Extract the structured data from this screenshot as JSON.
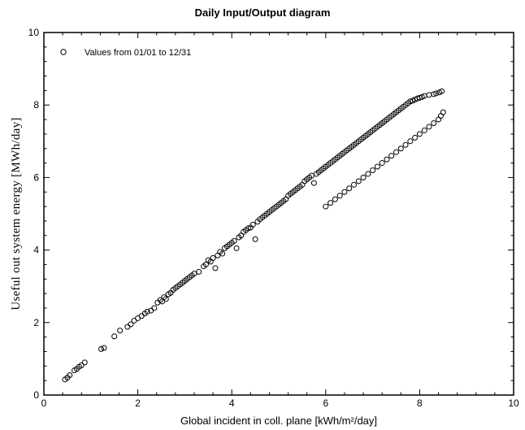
{
  "chart_data": {
    "type": "scatter",
    "title": "Daily Input/Output diagram",
    "xlabel": "Global incident in coll. plane [kWh/m²/day]",
    "ylabel": "Useful out system energy [MWh/day]",
    "xlim": [
      0,
      10
    ],
    "ylim": [
      0,
      10
    ],
    "xticks": [
      0,
      2,
      4,
      6,
      8,
      10
    ],
    "yticks": [
      0,
      2,
      4,
      6,
      8,
      10
    ],
    "grid": false,
    "legend_position": "top-left",
    "marker_color": "#000000",
    "series": [
      {
        "name": "Values from 01/01 to 12/31",
        "marker": "open-circle",
        "points": [
          [
            0.45,
            0.43
          ],
          [
            0.5,
            0.48
          ],
          [
            0.55,
            0.55
          ],
          [
            0.65,
            0.68
          ],
          [
            0.7,
            0.72
          ],
          [
            0.75,
            0.78
          ],
          [
            0.8,
            0.82
          ],
          [
            0.87,
            0.9
          ],
          [
            1.22,
            1.27
          ],
          [
            1.28,
            1.3
          ],
          [
            1.5,
            1.62
          ],
          [
            1.62,
            1.78
          ],
          [
            1.78,
            1.88
          ],
          [
            1.85,
            1.95
          ],
          [
            1.92,
            2.05
          ],
          [
            2.0,
            2.12
          ],
          [
            2.08,
            2.18
          ],
          [
            2.15,
            2.25
          ],
          [
            2.2,
            2.3
          ],
          [
            2.28,
            2.33
          ],
          [
            2.35,
            2.4
          ],
          [
            2.42,
            2.55
          ],
          [
            2.48,
            2.62
          ],
          [
            2.52,
            2.58
          ],
          [
            2.56,
            2.7
          ],
          [
            2.6,
            2.65
          ],
          [
            2.65,
            2.78
          ],
          [
            2.7,
            2.82
          ],
          [
            2.75,
            2.9
          ],
          [
            2.8,
            2.95
          ],
          [
            2.85,
            3.0
          ],
          [
            2.9,
            3.05
          ],
          [
            2.95,
            3.1
          ],
          [
            3.0,
            3.15
          ],
          [
            3.05,
            3.2
          ],
          [
            3.1,
            3.25
          ],
          [
            3.15,
            3.3
          ],
          [
            3.2,
            3.35
          ],
          [
            3.3,
            3.4
          ],
          [
            3.4,
            3.55
          ],
          [
            3.45,
            3.6
          ],
          [
            3.5,
            3.72
          ],
          [
            3.55,
            3.68
          ],
          [
            3.6,
            3.78
          ],
          [
            3.65,
            3.5
          ],
          [
            3.7,
            3.85
          ],
          [
            3.75,
            3.95
          ],
          [
            3.8,
            3.9
          ],
          [
            3.85,
            4.05
          ],
          [
            3.9,
            4.1
          ],
          [
            3.95,
            4.15
          ],
          [
            4.0,
            4.2
          ],
          [
            4.05,
            4.25
          ],
          [
            4.1,
            4.05
          ],
          [
            4.15,
            4.35
          ],
          [
            4.2,
            4.4
          ],
          [
            4.25,
            4.5
          ],
          [
            4.3,
            4.55
          ],
          [
            4.35,
            4.6
          ],
          [
            4.4,
            4.62
          ],
          [
            4.45,
            4.7
          ],
          [
            4.5,
            4.3
          ],
          [
            4.55,
            4.78
          ],
          [
            4.6,
            4.85
          ],
          [
            4.65,
            4.9
          ],
          [
            4.7,
            4.95
          ],
          [
            4.75,
            5.0
          ],
          [
            4.8,
            5.05
          ],
          [
            4.85,
            5.1
          ],
          [
            4.9,
            5.15
          ],
          [
            4.95,
            5.2
          ],
          [
            5.0,
            5.25
          ],
          [
            5.05,
            5.3
          ],
          [
            5.1,
            5.35
          ],
          [
            5.15,
            5.4
          ],
          [
            5.2,
            5.5
          ],
          [
            5.25,
            5.55
          ],
          [
            5.3,
            5.6
          ],
          [
            5.35,
            5.65
          ],
          [
            5.4,
            5.7
          ],
          [
            5.45,
            5.75
          ],
          [
            5.5,
            5.8
          ],
          [
            5.55,
            5.9
          ],
          [
            5.6,
            5.95
          ],
          [
            5.65,
            6.0
          ],
          [
            5.7,
            6.05
          ],
          [
            5.75,
            5.85
          ],
          [
            5.8,
            6.1
          ],
          [
            5.85,
            6.15
          ],
          [
            5.9,
            6.2
          ],
          [
            5.95,
            6.25
          ],
          [
            6.0,
            6.3
          ],
          [
            6.05,
            6.35
          ],
          [
            6.1,
            6.4
          ],
          [
            6.15,
            6.45
          ],
          [
            6.2,
            6.5
          ],
          [
            6.25,
            6.55
          ],
          [
            6.3,
            6.6
          ],
          [
            6.35,
            6.65
          ],
          [
            6.4,
            6.7
          ],
          [
            6.45,
            6.75
          ],
          [
            6.5,
            6.8
          ],
          [
            6.55,
            6.85
          ],
          [
            6.6,
            6.9
          ],
          [
            6.65,
            6.95
          ],
          [
            6.7,
            7.0
          ],
          [
            6.75,
            7.05
          ],
          [
            6.8,
            7.1
          ],
          [
            6.85,
            7.15
          ],
          [
            6.9,
            7.2
          ],
          [
            6.95,
            7.25
          ],
          [
            7.0,
            7.3
          ],
          [
            7.05,
            7.35
          ],
          [
            7.1,
            7.4
          ],
          [
            7.15,
            7.45
          ],
          [
            7.2,
            7.5
          ],
          [
            7.25,
            7.55
          ],
          [
            7.3,
            7.6
          ],
          [
            7.35,
            7.65
          ],
          [
            7.4,
            7.7
          ],
          [
            7.45,
            7.75
          ],
          [
            7.5,
            7.8
          ],
          [
            7.55,
            7.85
          ],
          [
            7.6,
            7.9
          ],
          [
            7.65,
            7.95
          ],
          [
            7.7,
            8.0
          ],
          [
            7.75,
            8.05
          ],
          [
            7.8,
            8.1
          ],
          [
            7.85,
            8.12
          ],
          [
            7.9,
            8.15
          ],
          [
            7.95,
            8.18
          ],
          [
            8.0,
            8.2
          ],
          [
            8.05,
            8.22
          ],
          [
            8.1,
            8.25
          ],
          [
            8.2,
            8.28
          ],
          [
            8.3,
            8.3
          ],
          [
            8.35,
            8.32
          ],
          [
            8.42,
            8.35
          ],
          [
            8.47,
            8.38
          ],
          [
            8.5,
            7.8
          ],
          [
            8.45,
            7.7
          ],
          [
            8.4,
            7.6
          ],
          [
            8.3,
            7.5
          ],
          [
            8.2,
            7.4
          ],
          [
            8.1,
            7.3
          ],
          [
            8.0,
            7.2
          ],
          [
            7.9,
            7.1
          ],
          [
            7.8,
            7.0
          ],
          [
            7.7,
            6.9
          ],
          [
            7.6,
            6.8
          ],
          [
            7.5,
            6.7
          ],
          [
            7.4,
            6.6
          ],
          [
            7.3,
            6.5
          ],
          [
            7.2,
            6.4
          ],
          [
            7.1,
            6.3
          ],
          [
            7.0,
            6.2
          ],
          [
            6.9,
            6.1
          ],
          [
            6.8,
            6.0
          ],
          [
            6.7,
            5.9
          ],
          [
            6.6,
            5.8
          ],
          [
            6.5,
            5.7
          ],
          [
            6.4,
            5.6
          ],
          [
            6.3,
            5.5
          ],
          [
            6.2,
            5.4
          ],
          [
            6.1,
            5.3
          ],
          [
            6.0,
            5.2
          ]
        ]
      }
    ]
  }
}
